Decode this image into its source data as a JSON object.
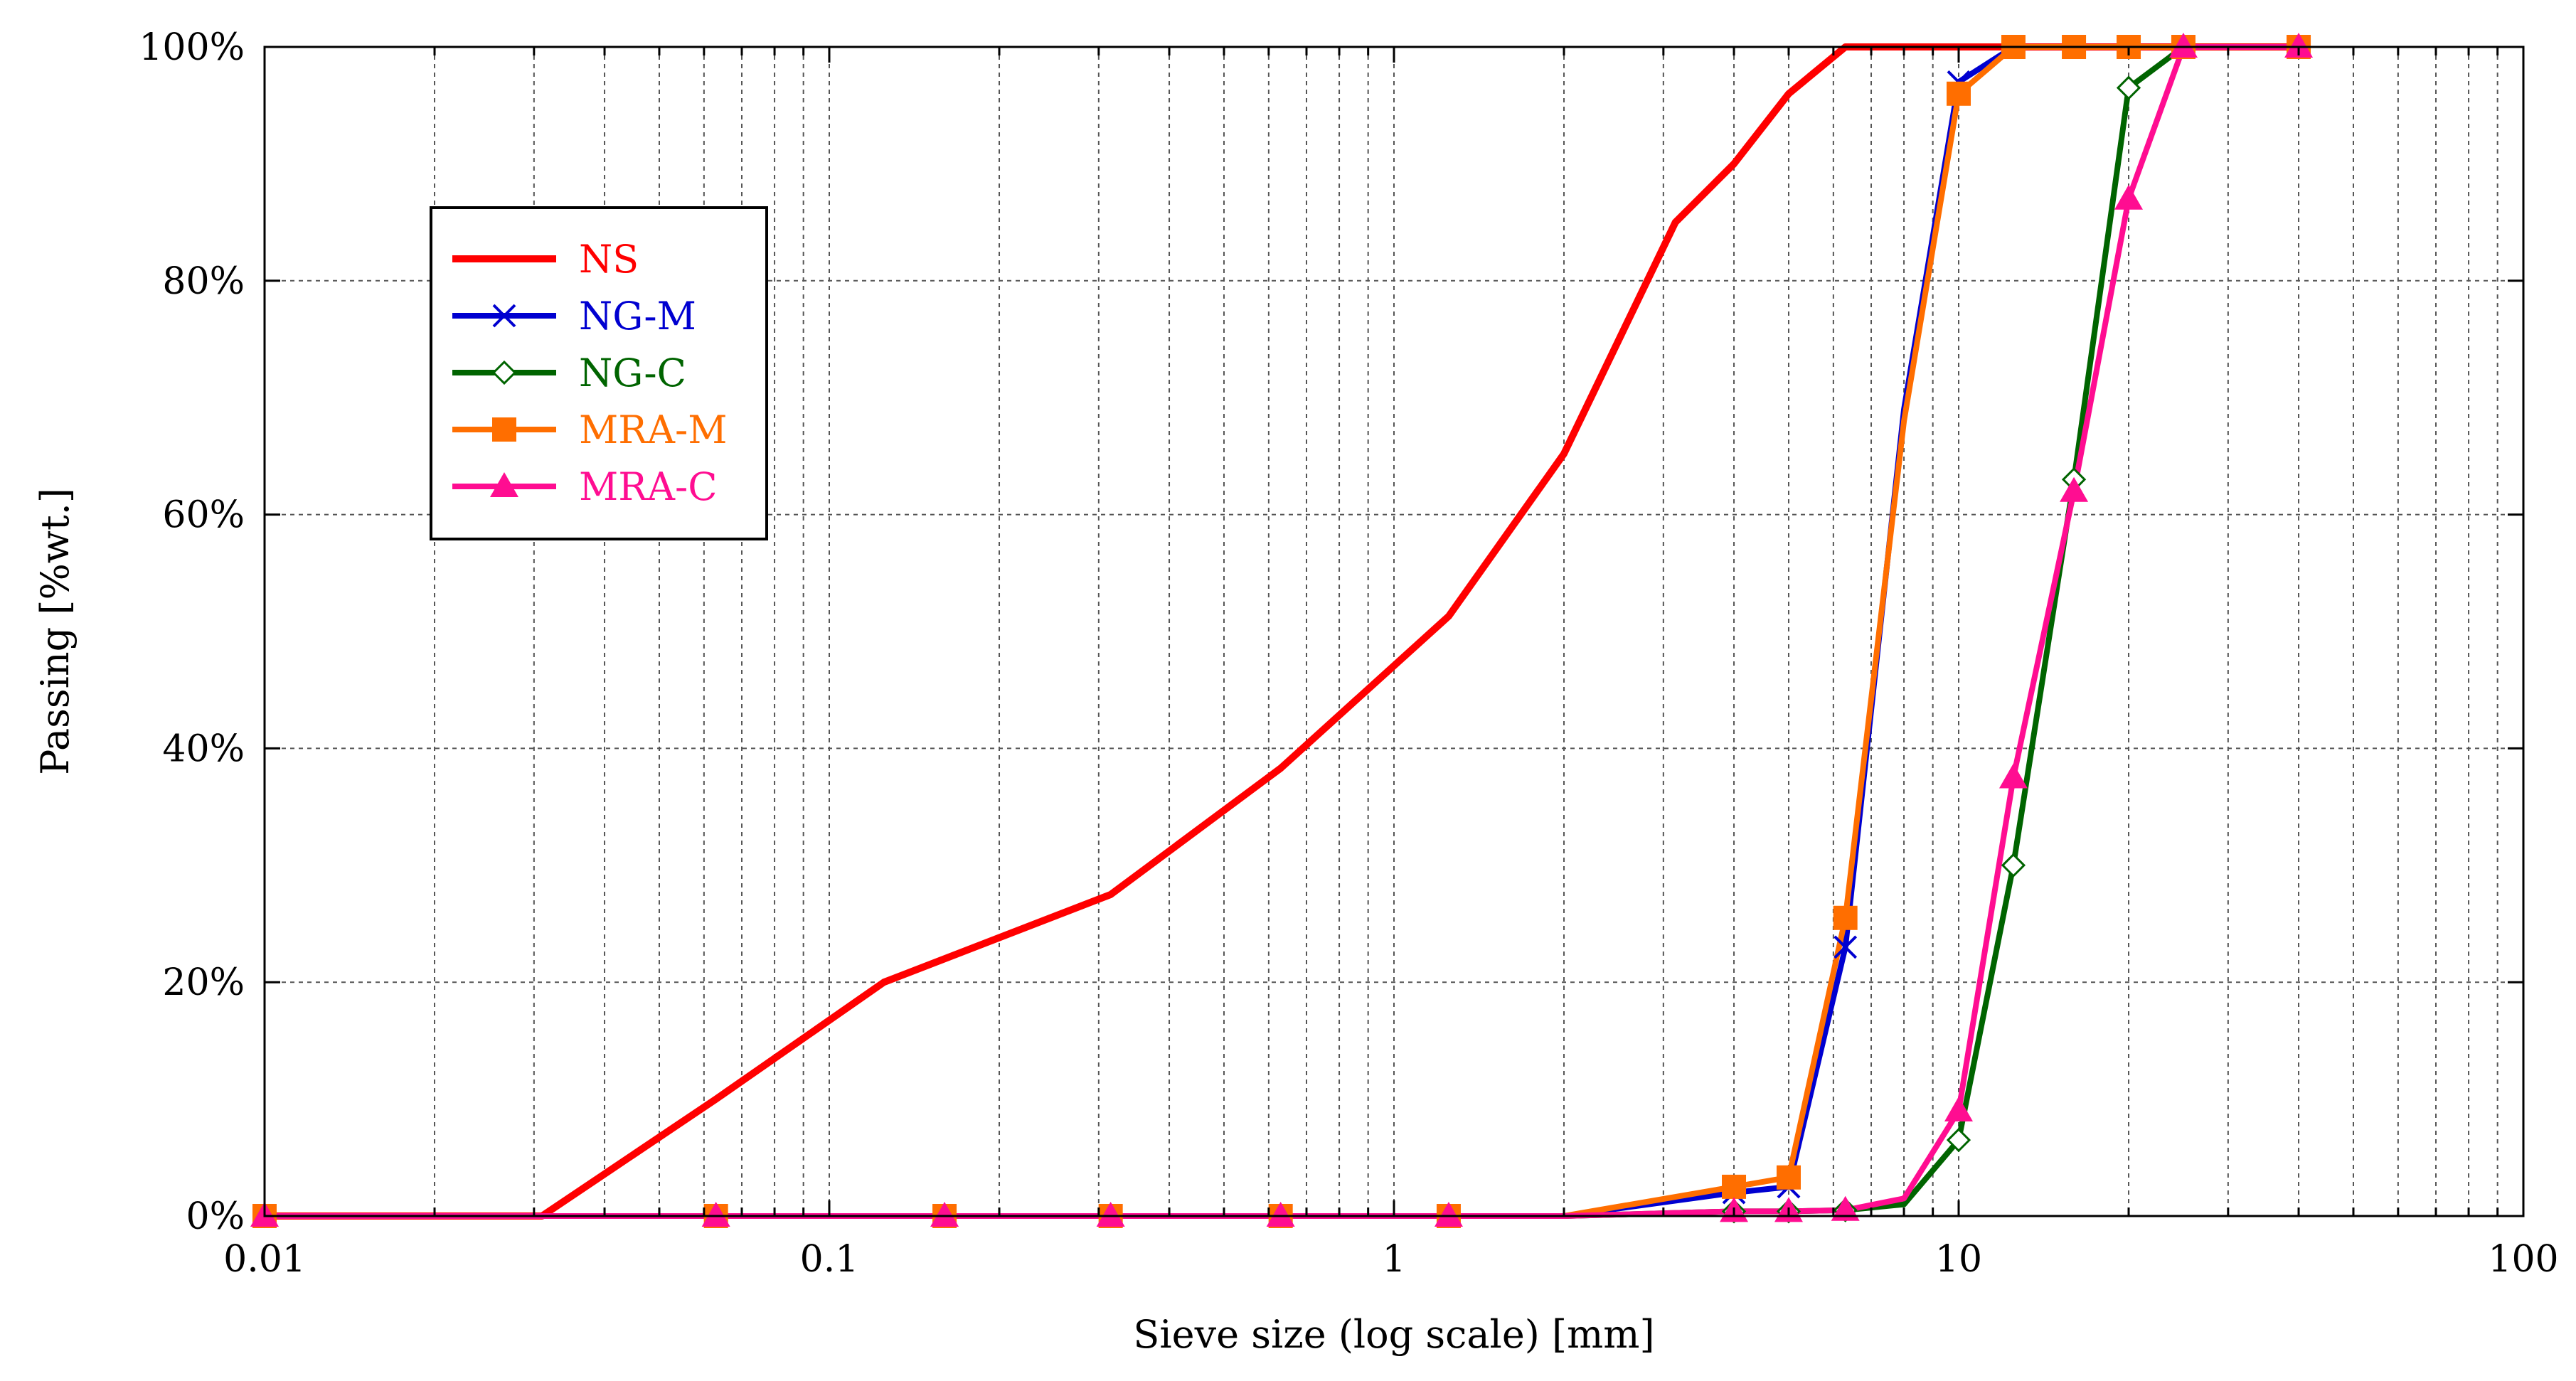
{
  "chart_data": {
    "type": "line",
    "title": "",
    "xlabel": "Sieve size (log scale) [mm]",
    "ylabel": "Passing [%wt.]",
    "x_scale": "log",
    "xlim": [
      0.01,
      100
    ],
    "ylim": [
      0,
      100
    ],
    "x_ticks": [
      0.01,
      0.1,
      1,
      10,
      100
    ],
    "x_tick_labels": [
      "0.01",
      "0.1",
      "1",
      "10",
      "100"
    ],
    "y_ticks": [
      0,
      20,
      40,
      60,
      80,
      100
    ],
    "y_tick_labels": [
      "0%",
      "20%",
      "40%",
      "60%",
      "80%",
      "100%"
    ],
    "grid": true,
    "legend_position": "upper-left",
    "series": [
      {
        "name": "NS",
        "color": "#ff0000",
        "marker": "none",
        "x": [
          0.01,
          0.031,
          0.063,
          0.125,
          0.315,
          0.63,
          1.25,
          2,
          3.15,
          4,
          5,
          6.3,
          8,
          10,
          16,
          20,
          31.5,
          40
        ],
        "y": [
          0,
          0,
          10,
          20,
          27.5,
          38.3,
          51.3,
          65.2,
          85,
          90,
          96,
          100,
          100,
          100,
          100,
          100,
          100,
          100
        ],
        "marker_idx": []
      },
      {
        "name": "NG-M",
        "color": "#0000d0",
        "marker": "x",
        "x": [
          0.01,
          0.063,
          0.16,
          0.315,
          0.63,
          1.25,
          2,
          4,
          5,
          6.3,
          8,
          10,
          12.5,
          16,
          20,
          25,
          40
        ],
        "y": [
          0,
          0,
          0,
          0,
          0,
          0,
          0,
          2,
          2.5,
          23,
          69,
          97,
          100,
          100,
          100,
          100,
          100
        ],
        "marker_idx": [
          0,
          1,
          2,
          3,
          4,
          5,
          7,
          8,
          9,
          11,
          12,
          13,
          14,
          15,
          16
        ]
      },
      {
        "name": "NG-C",
        "color": "#006400",
        "marker": "diamond",
        "x": [
          0.01,
          0.063,
          0.16,
          0.315,
          0.63,
          1.25,
          2,
          4,
          5,
          6.3,
          8,
          10,
          12.5,
          16,
          20,
          25,
          40
        ],
        "y": [
          0,
          0,
          0,
          0,
          0,
          0,
          0,
          0.4,
          0.4,
          0.5,
          1,
          6.5,
          30,
          63,
          96.5,
          100,
          100
        ],
        "marker_idx": [
          0,
          1,
          2,
          3,
          4,
          5,
          7,
          8,
          9,
          11,
          12,
          13,
          14,
          15,
          16
        ]
      },
      {
        "name": "MRA-M",
        "color": "#ff6e00",
        "marker": "square",
        "x": [
          0.01,
          0.063,
          0.16,
          0.315,
          0.63,
          1.25,
          2,
          4,
          5,
          6.3,
          8,
          10,
          12.5,
          16,
          20,
          25,
          40
        ],
        "y": [
          0,
          0,
          0,
          0,
          0,
          0,
          0,
          2.5,
          3.3,
          25.5,
          68,
          96,
          100,
          100,
          100,
          100,
          100
        ],
        "marker_idx": [
          0,
          1,
          2,
          3,
          4,
          5,
          7,
          8,
          9,
          11,
          12,
          13,
          14,
          15,
          16
        ]
      },
      {
        "name": "MRA-C",
        "color": "#ff0d91",
        "marker": "triangle",
        "x": [
          0.01,
          0.063,
          0.16,
          0.315,
          0.63,
          1.25,
          2,
          4,
          5,
          6.3,
          8,
          10,
          12.5,
          16,
          20,
          25,
          40
        ],
        "y": [
          0,
          0,
          0,
          0,
          0,
          0,
          0,
          0.4,
          0.4,
          0.5,
          1.5,
          9,
          37.5,
          62,
          87,
          100,
          100
        ],
        "marker_idx": [
          0,
          1,
          2,
          3,
          4,
          5,
          7,
          8,
          9,
          11,
          12,
          13,
          14,
          15,
          16
        ]
      }
    ]
  }
}
